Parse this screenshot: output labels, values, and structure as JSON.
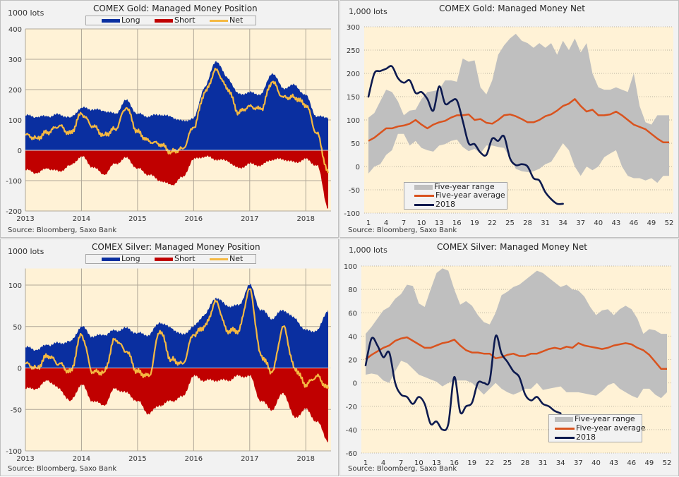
{
  "colors": {
    "long": "#0a2fa0",
    "short": "#c00000",
    "net": "#f5b942",
    "range": "#bfbfbf",
    "average": "#d9531e",
    "y2018": "#0d1a4f",
    "plot_bg": "#fff2d6"
  },
  "source": "Source: Bloomberg, Saxo Bank",
  "chart_data": [
    {
      "id": "gold-position",
      "type": "area",
      "title": "COMEX Gold: Managed Money Position",
      "ylabel": "1000 lots",
      "ylim": [
        -200,
        400
      ],
      "yticks": [
        "400",
        "300",
        "200",
        "100",
        "0",
        "-100",
        "-200"
      ],
      "xticks": [
        "2013",
        "2014",
        "2015",
        "2016",
        "2017",
        "2018"
      ],
      "legend": [
        "Long",
        "Short",
        "Net"
      ],
      "x_years": [
        2013.0,
        2013.2,
        2013.4,
        2013.6,
        2013.8,
        2014.0,
        2014.2,
        2014.4,
        2014.6,
        2014.8,
        2015.0,
        2015.2,
        2015.4,
        2015.6,
        2015.8,
        2016.0,
        2016.2,
        2016.4,
        2016.6,
        2016.8,
        2017.0,
        2017.2,
        2017.4,
        2017.6,
        2017.8,
        2018.0,
        2018.2,
        2018.4
      ],
      "series": [
        {
          "name": "Long",
          "values": [
            115,
            110,
            112,
            118,
            108,
            140,
            135,
            130,
            120,
            165,
            120,
            112,
            118,
            110,
            96,
            105,
            210,
            295,
            240,
            185,
            190,
            185,
            255,
            205,
            215,
            180,
            110,
            110
          ]
        },
        {
          "name": "Short",
          "values": [
            -65,
            -75,
            -60,
            -70,
            -50,
            -20,
            -55,
            -80,
            -45,
            -25,
            -60,
            -80,
            -100,
            -115,
            -90,
            -30,
            -20,
            -30,
            -35,
            -60,
            -45,
            -50,
            -30,
            -30,
            -40,
            -30,
            -50,
            -190
          ]
        },
        {
          "name": "Net",
          "values": [
            50,
            40,
            60,
            80,
            55,
            120,
            80,
            50,
            70,
            140,
            60,
            30,
            20,
            -5,
            5,
            75,
            190,
            265,
            205,
            125,
            145,
            135,
            225,
            175,
            175,
            150,
            55,
            -75
          ]
        }
      ]
    },
    {
      "id": "gold-net",
      "type": "line",
      "title": "COMEX Gold: Managed Money Net",
      "ylabel": "1,000 lots",
      "ylim": [
        -100,
        300
      ],
      "yticks": [
        "300",
        "250",
        "200",
        "150",
        "100",
        "50",
        "0",
        "-50",
        "-100"
      ],
      "xticks": [
        "1",
        "4",
        "7",
        "10",
        "13",
        "16",
        "19",
        "22",
        "25",
        "28",
        "31",
        "34",
        "37",
        "40",
        "43",
        "46",
        "49",
        "52"
      ],
      "legend": [
        "Five-year range",
        "Five-year average",
        "2018"
      ],
      "weeks": [
        1,
        2,
        3,
        4,
        5,
        6,
        7,
        8,
        9,
        10,
        11,
        12,
        13,
        14,
        15,
        16,
        17,
        18,
        19,
        20,
        21,
        22,
        23,
        24,
        25,
        26,
        27,
        28,
        29,
        30,
        31,
        32,
        33,
        34,
        35,
        36,
        37,
        38,
        39,
        40,
        41,
        42,
        43,
        44,
        45,
        46,
        47,
        48,
        49,
        50,
        51,
        52
      ],
      "range_high": [
        105,
        115,
        140,
        165,
        160,
        140,
        110,
        120,
        122,
        145,
        160,
        162,
        165,
        185,
        185,
        182,
        232,
        225,
        228,
        170,
        155,
        185,
        240,
        260,
        275,
        285,
        270,
        265,
        255,
        265,
        255,
        265,
        240,
        270,
        250,
        275,
        245,
        265,
        200,
        170,
        165,
        165,
        170,
        165,
        160,
        200,
        130,
        95,
        90,
        110,
        110,
        110
      ],
      "range_low": [
        -15,
        0,
        5,
        25,
        35,
        70,
        70,
        45,
        55,
        40,
        35,
        32,
        45,
        48,
        55,
        58,
        42,
        33,
        38,
        28,
        45,
        45,
        42,
        40,
        20,
        -5,
        -10,
        -12,
        -10,
        -5,
        5,
        10,
        30,
        50,
        35,
        0,
        -20,
        0,
        -8,
        0,
        20,
        28,
        35,
        0,
        -20,
        -25,
        -25,
        -30,
        -25,
        -35,
        -20,
        -20
      ],
      "average": [
        55,
        62,
        72,
        82,
        82,
        86,
        88,
        92,
        100,
        90,
        82,
        90,
        95,
        98,
        105,
        110,
        110,
        112,
        100,
        102,
        94,
        92,
        100,
        110,
        112,
        108,
        102,
        95,
        95,
        100,
        108,
        112,
        120,
        130,
        135,
        145,
        130,
        118,
        122,
        110,
        110,
        112,
        118,
        110,
        100,
        90,
        85,
        80,
        70,
        60,
        52,
        52
      ],
      "y2018": [
        150,
        200,
        205,
        210,
        215,
        190,
        180,
        185,
        158,
        160,
        145,
        120,
        172,
        135,
        140,
        142,
        98,
        50,
        48,
        30,
        25,
        60,
        55,
        65,
        18,
        3,
        5,
        0,
        -25,
        -30,
        -55,
        -70,
        -80,
        -80
      ]
    },
    {
      "id": "silver-position",
      "type": "area",
      "title": "COMEX Silver: Managed Money Position",
      "ylabel": "1000 lots",
      "ylim": [
        -100,
        120
      ],
      "yticks": [
        "100",
        "50",
        "0",
        "-50",
        "-100"
      ],
      "xticks": [
        "2013",
        "2014",
        "2015",
        "2016",
        "2017",
        "2018"
      ],
      "legend": [
        "Long",
        "Short",
        "Net"
      ],
      "x_years": [
        2013.0,
        2013.2,
        2013.4,
        2013.6,
        2013.8,
        2014.0,
        2014.2,
        2014.4,
        2014.6,
        2014.8,
        2015.0,
        2015.2,
        2015.4,
        2015.6,
        2015.8,
        2016.0,
        2016.2,
        2016.4,
        2016.6,
        2016.8,
        2017.0,
        2017.2,
        2017.4,
        2017.6,
        2017.8,
        2018.0,
        2018.2,
        2018.4
      ],
      "series": [
        {
          "name": "Long",
          "values": [
            25,
            22,
            28,
            30,
            32,
            50,
            38,
            40,
            45,
            48,
            42,
            40,
            55,
            48,
            40,
            50,
            65,
            85,
            75,
            75,
            100,
            70,
            60,
            70,
            60,
            45,
            45,
            70
          ]
        },
        {
          "name": "Short",
          "values": [
            -25,
            -25,
            -15,
            -25,
            -40,
            -20,
            -40,
            -45,
            -25,
            -30,
            -40,
            -55,
            -45,
            -40,
            -35,
            -10,
            -15,
            -15,
            -15,
            -10,
            -10,
            -40,
            -50,
            -30,
            -60,
            -50,
            -65,
            -88
          ]
        },
        {
          "name": "Net",
          "values": [
            5,
            0,
            15,
            5,
            -5,
            40,
            -5,
            -5,
            35,
            20,
            -5,
            -10,
            45,
            10,
            5,
            40,
            50,
            80,
            45,
            45,
            95,
            15,
            -5,
            50,
            0,
            -20,
            -10,
            -25
          ]
        }
      ]
    },
    {
      "id": "silver-net",
      "type": "line",
      "title": "COMEX Silver: Managed Money Net",
      "ylabel": "1,000 lots",
      "ylim": [
        -60,
        100
      ],
      "yticks": [
        "100",
        "80",
        "60",
        "40",
        "20",
        "0",
        "-20",
        "-40",
        "-60"
      ],
      "xticks": [
        "1",
        "4",
        "7",
        "10",
        "13",
        "16",
        "19",
        "22",
        "25",
        "28",
        "31",
        "34",
        "37",
        "40",
        "43",
        "46",
        "49",
        "52"
      ],
      "legend": [
        "Five-year range",
        "Five-year average",
        "2018"
      ],
      "weeks": [
        1,
        2,
        3,
        4,
        5,
        6,
        7,
        8,
        9,
        10,
        11,
        12,
        13,
        14,
        15,
        16,
        17,
        18,
        19,
        20,
        21,
        22,
        23,
        24,
        25,
        26,
        27,
        28,
        29,
        30,
        31,
        32,
        33,
        34,
        35,
        36,
        37,
        38,
        39,
        40,
        41,
        42,
        43,
        44,
        45,
        46,
        47,
        48,
        49,
        50,
        51,
        52
      ],
      "range_high": [
        42,
        48,
        55,
        62,
        65,
        72,
        76,
        84,
        83,
        68,
        65,
        80,
        94,
        98,
        96,
        80,
        67,
        70,
        66,
        58,
        52,
        50,
        60,
        75,
        78,
        82,
        84,
        88,
        92,
        96,
        94,
        90,
        86,
        82,
        84,
        80,
        79,
        74,
        65,
        58,
        62,
        63,
        58,
        63,
        66,
        63,
        55,
        42,
        46,
        45,
        42,
        42
      ],
      "range_low": [
        7,
        8,
        7,
        2,
        0,
        10,
        19,
        17,
        12,
        7,
        5,
        3,
        1,
        -3,
        0,
        2,
        2,
        2,
        0,
        -5,
        -10,
        -5,
        0,
        -5,
        -8,
        -10,
        -8,
        -5,
        -5,
        0,
        -6,
        -5,
        -4,
        -3,
        -8,
        -8,
        -8,
        -9,
        -10,
        -11,
        -7,
        -2,
        0,
        -5,
        -8,
        -11,
        -13,
        -5,
        -5,
        -10,
        -13,
        -8
      ],
      "average": [
        20,
        24,
        27,
        30,
        32,
        36,
        38,
        39,
        36,
        33,
        30,
        30,
        32,
        34,
        35,
        37,
        32,
        28,
        26,
        26,
        25,
        25,
        21,
        22,
        24,
        25,
        23,
        23,
        25,
        25,
        27,
        29,
        30,
        29,
        31,
        30,
        34,
        32,
        31,
        30,
        29,
        30,
        32,
        33,
        34,
        33,
        30,
        28,
        24,
        18,
        12,
        12
      ],
      "y2018": [
        15,
        38,
        32,
        22,
        26,
        0,
        -10,
        -12,
        -18,
        -12,
        -18,
        -35,
        -33,
        -40,
        -35,
        5,
        -25,
        -20,
        -17,
        0,
        0,
        2,
        40,
        25,
        18,
        10,
        5,
        -10,
        -15,
        -12,
        -18,
        -20,
        -24,
        -26
      ]
    }
  ]
}
